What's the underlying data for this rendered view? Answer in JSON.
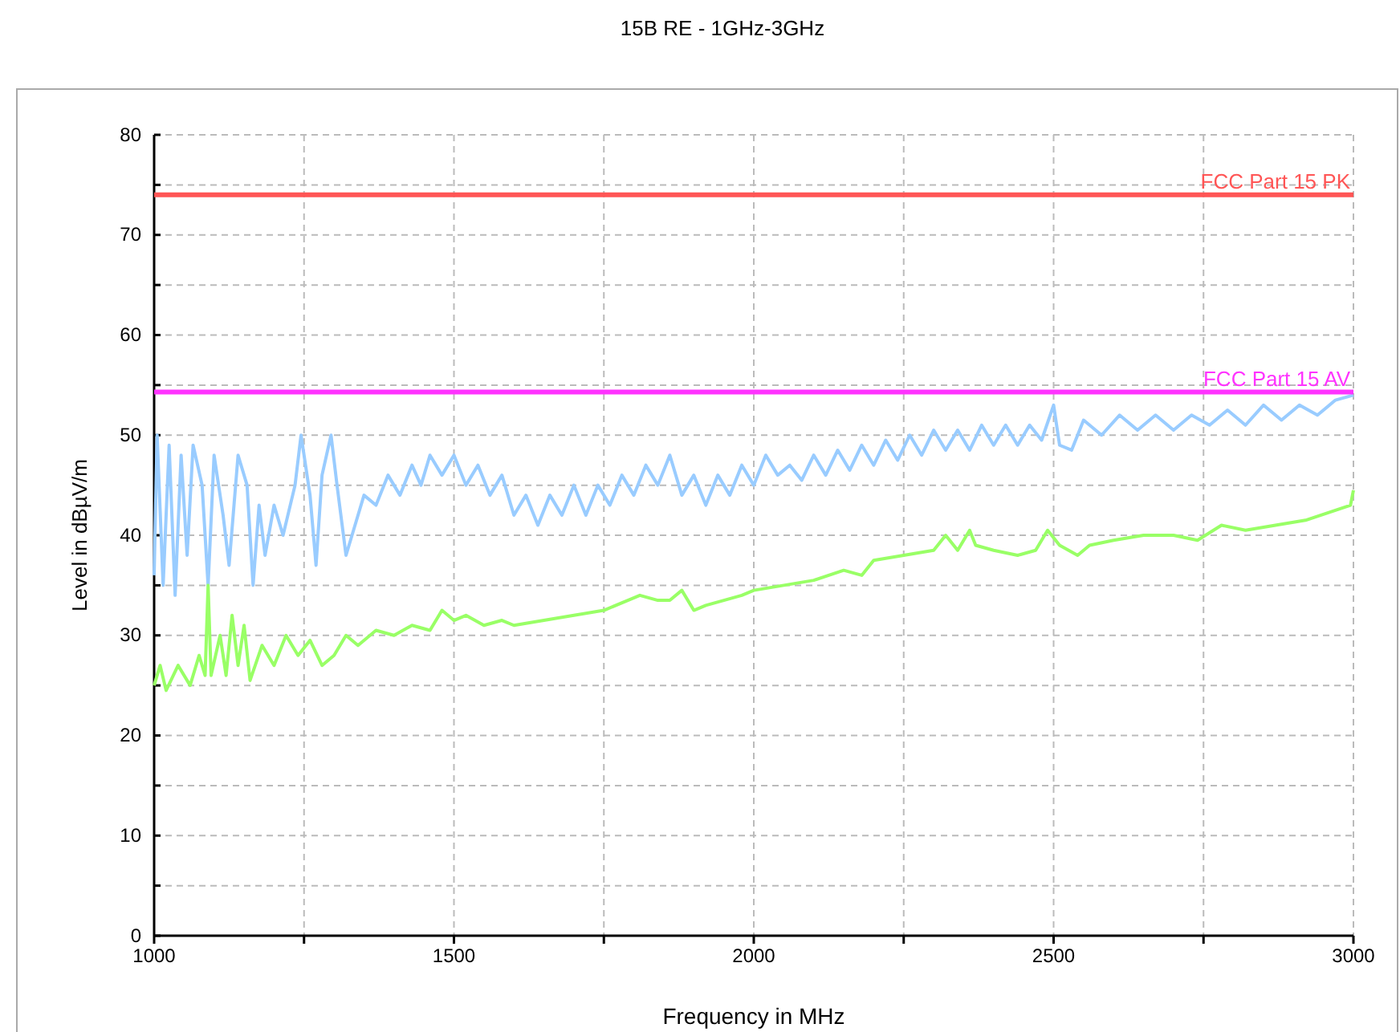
{
  "chart_data": {
    "type": "line",
    "title": "15B RE - 1GHz-3GHz",
    "xlabel": "Frequency in MHz",
    "ylabel": "Level in dBµV/m",
    "xlim": [
      1000,
      3000
    ],
    "xticks": [
      1000,
      {
        "value": 1250,
        "label": null
      },
      1500,
      {
        "value": 1750,
        "label": null
      },
      2000,
      {
        "value": 2250,
        "label": null
      },
      2500,
      {
        "value": 2750,
        "label": null
      },
      3000
    ],
    "ylim": [
      0,
      80
    ],
    "yticks": [
      0,
      {
        "value": 5,
        "label": null
      },
      10,
      {
        "value": 15,
        "label": null
      },
      20,
      {
        "value": 25,
        "label": null
      },
      30,
      {
        "value": 35,
        "label": null
      },
      40,
      {
        "value": 45,
        "label": null
      },
      50,
      {
        "value": 55,
        "label": null
      },
      60,
      {
        "value": 65,
        "label": null
      },
      70,
      {
        "value": 75,
        "label": null
      },
      80
    ],
    "grid": true,
    "line_style": "solid",
    "marker": "none",
    "series": [
      {
        "color": "#99ccff",
        "x": [
          1000,
          1005,
          1015,
          1025,
          1035,
          1045,
          1055,
          1065,
          1080,
          1090,
          1100,
          1115,
          1125,
          1140,
          1155,
          1165,
          1175,
          1185,
          1200,
          1215,
          1235,
          1245,
          1260,
          1270,
          1280,
          1295,
          1305,
          1320,
          1335,
          1350,
          1370,
          1390,
          1410,
          1430,
          1445,
          1460,
          1480,
          1500,
          1520,
          1540,
          1560,
          1580,
          1600,
          1620,
          1640,
          1660,
          1680,
          1700,
          1720,
          1740,
          1760,
          1780,
          1800,
          1820,
          1840,
          1860,
          1880,
          1900,
          1920,
          1940,
          1960,
          1980,
          2000,
          2020,
          2040,
          2060,
          2080,
          2100,
          2120,
          2140,
          2160,
          2180,
          2200,
          2220,
          2240,
          2260,
          2280,
          2300,
          2320,
          2340,
          2360,
          2380,
          2400,
          2420,
          2440,
          2460,
          2480,
          2500,
          2510,
          2530,
          2550,
          2580,
          2610,
          2640,
          2670,
          2700,
          2730,
          2760,
          2790,
          2820,
          2850,
          2880,
          2910,
          2940,
          2970,
          3000
        ],
        "values": [
          36,
          50,
          35,
          49,
          34,
          48,
          38,
          49,
          45,
          35,
          48,
          42,
          37,
          48,
          45,
          35,
          43,
          38,
          43,
          40,
          45,
          50,
          44,
          37,
          46,
          50,
          45,
          38,
          41,
          44,
          43,
          46,
          44,
          47,
          45,
          48,
          46,
          48,
          45,
          47,
          44,
          46,
          42,
          44,
          41,
          44,
          42,
          45,
          42,
          45,
          43,
          46,
          44,
          47,
          45,
          48,
          44,
          46,
          43,
          46,
          44,
          47,
          45,
          48,
          46,
          47,
          45.5,
          48,
          46,
          48.5,
          46.5,
          49,
          47,
          49.5,
          47.5,
          50,
          48,
          50.5,
          48.5,
          50.5,
          48.5,
          51,
          49,
          51,
          49,
          51,
          49.5,
          53,
          49,
          48.5,
          51.5,
          50,
          52,
          50.5,
          52,
          50.5,
          52,
          51,
          52.5,
          51,
          53,
          51.5,
          53,
          52,
          53.5,
          54
        ]
      },
      {
        "color": "#99ff66",
        "x": [
          1000,
          1010,
          1020,
          1040,
          1060,
          1075,
          1085,
          1090,
          1095,
          1110,
          1120,
          1130,
          1140,
          1150,
          1160,
          1180,
          1200,
          1220,
          1240,
          1260,
          1280,
          1300,
          1320,
          1340,
          1370,
          1400,
          1430,
          1460,
          1480,
          1500,
          1520,
          1550,
          1580,
          1600,
          1650,
          1700,
          1750,
          1790,
          1810,
          1840,
          1860,
          1880,
          1900,
          1920,
          1950,
          1980,
          2000,
          2050,
          2100,
          2150,
          2180,
          2200,
          2250,
          2300,
          2320,
          2340,
          2360,
          2370,
          2400,
          2440,
          2470,
          2490,
          2510,
          2540,
          2560,
          2600,
          2650,
          2700,
          2740,
          2780,
          2820,
          2870,
          2920,
          2970,
          2995,
          3000
        ],
        "values": [
          25,
          27,
          24.5,
          27,
          25,
          28,
          26,
          35,
          26,
          30,
          26,
          32,
          27,
          31,
          25.5,
          29,
          27,
          30,
          28,
          29.5,
          27,
          28,
          30,
          29,
          30.5,
          30,
          31,
          30.5,
          32.5,
          31.5,
          32,
          31,
          31.5,
          31,
          31.5,
          32,
          32.5,
          33.5,
          34,
          33.5,
          33.5,
          34.5,
          32.5,
          33,
          33.5,
          34,
          34.5,
          35,
          35.5,
          36.5,
          36,
          37.5,
          38,
          38.5,
          40,
          38.5,
          40.5,
          39,
          38.5,
          38,
          38.5,
          40.5,
          39,
          38,
          39,
          39.5,
          40,
          40,
          39.5,
          41,
          40.5,
          41,
          41.5,
          42.5,
          43,
          44.5
        ]
      }
    ],
    "ref_lines": [
      {
        "axis": "y",
        "value": 74,
        "label": "FCC Part 15 PK",
        "color": "#ff5555"
      },
      {
        "axis": "y",
        "value": 54.3,
        "label": "FCC Part 15 AV",
        "color": "#ff33ff"
      }
    ]
  }
}
